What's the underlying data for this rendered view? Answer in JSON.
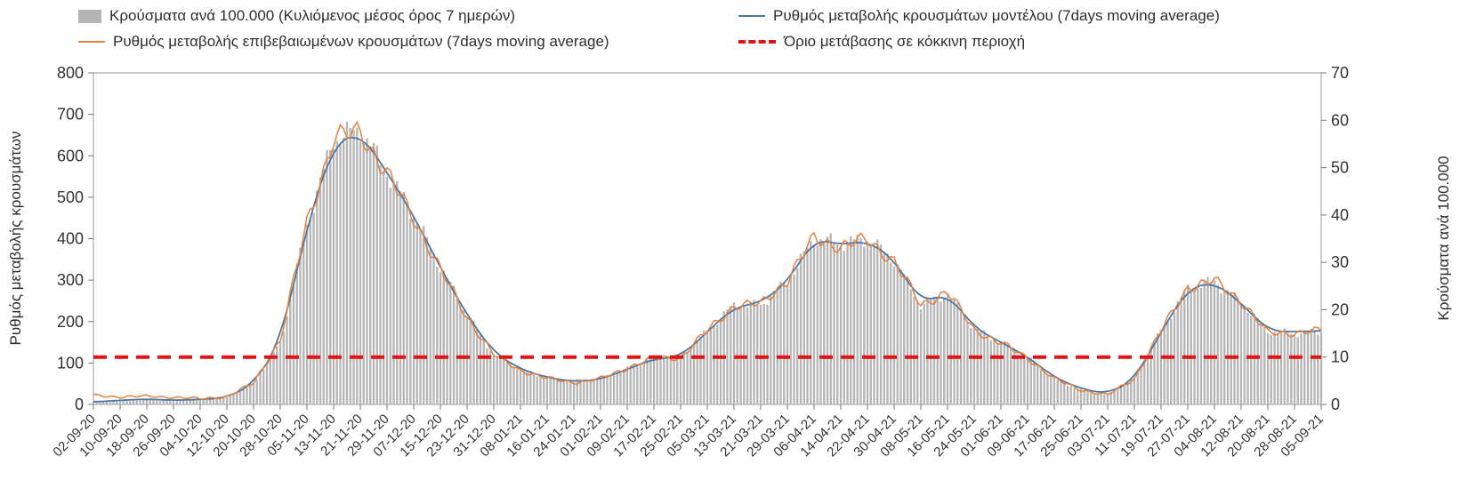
{
  "chart_data": {
    "type": "bar+line",
    "days_per_tick": 8,
    "background": "#ffffff",
    "x_tick_labels": [
      "02-09-20",
      "10-09-20",
      "18-09-20",
      "26-09-20",
      "04-10-20",
      "12-10-20",
      "20-10-20",
      "28-10-20",
      "05-11-20",
      "13-11-20",
      "21-11-20",
      "29-11-20",
      "07-12-20",
      "15-12-20",
      "23-12-20",
      "31-12-20",
      "08-01-21",
      "16-01-21",
      "24-01-21",
      "01-02-21",
      "09-02-21",
      "17-02-21",
      "25-02-21",
      "05-03-21",
      "13-03-21",
      "21-03-21",
      "29-03-21",
      "06-04-21",
      "14-04-21",
      "22-04-21",
      "30-04-21",
      "08-05-21",
      "16-05-21",
      "24-05-21",
      "01-06-21",
      "09-06-21",
      "17-06-21",
      "25-06-21",
      "03-07-21",
      "11-07-21",
      "19-07-21",
      "27-07-21",
      "04-08-21",
      "12-08-21",
      "20-08-21",
      "28-08-21",
      "05-09-21"
    ],
    "left_axis": {
      "label": "Ρυθμός μεταβολής κρουσμάτων",
      "min": 0,
      "max": 800,
      "step": 100,
      "ticks": [
        0,
        100,
        200,
        300,
        400,
        500,
        600,
        700,
        800
      ]
    },
    "right_axis": {
      "label": "Κρούσματα ανά 100.000",
      "min": 0,
      "max": 70,
      "step": 10,
      "ticks": [
        0,
        10,
        20,
        30,
        40,
        50,
        60,
        70
      ]
    },
    "threshold": {
      "label": "Όριο μετάβασης σε κόκκινη περιοχή",
      "axis": "right",
      "value": 10,
      "color": "#e01212",
      "style": "dashed"
    },
    "series": [
      {
        "name": "Κρούσματα ανά 100.000 (Κυλιόμενος μέσος όρος 7 ημερών)",
        "type": "bar",
        "axis": "right",
        "color": "#b5b5b5",
        "values": [
          0.5,
          0.8,
          1.0,
          0.9,
          1.0,
          1.5,
          4.5,
          13,
          38,
          56,
          58,
          49,
          40,
          29,
          19,
          10.5,
          7.5,
          5.5,
          5,
          5.5,
          7.5,
          10,
          10,
          15.5,
          21,
          21,
          26,
          35,
          34,
          35,
          30.5,
          21,
          23.5,
          16,
          13,
          10,
          5.5,
          3,
          2,
          5.5,
          15.5,
          24.5,
          26,
          21.5,
          15.5,
          15,
          15.5
        ]
      },
      {
        "name": "Ρυθμός μεταβολής κρουσμάτων μοντέλου (7days moving average)",
        "type": "line",
        "axis": "left",
        "color": "#4878a8",
        "values": [
          6,
          10,
          13,
          10,
          12,
          16,
          50,
          150,
          430,
          630,
          655,
          560,
          455,
          330,
          215,
          125,
          85,
          65,
          55,
          60,
          85,
          110,
          115,
          175,
          235,
          245,
          295,
          400,
          385,
          395,
          350,
          245,
          268,
          185,
          150,
          115,
          65,
          38,
          25,
          60,
          175,
          280,
          295,
          245,
          178,
          175,
          178
        ]
      },
      {
        "name": "Ρυθμός μεταβολής επιβεβαιωμένων κρουσμάτων (7days moving average)",
        "type": "line",
        "axis": "left",
        "color": "#e8813c",
        "values": [
          22,
          18,
          20,
          17,
          14,
          18,
          52,
          155,
          440,
          640,
          660,
          555,
          450,
          325,
          210,
          120,
          82,
          63,
          53,
          62,
          88,
          112,
          113,
          178,
          238,
          242,
          300,
          402,
          380,
          398,
          345,
          240,
          272,
          180,
          148,
          112,
          62,
          35,
          23,
          62,
          178,
          283,
          298,
          250,
          172,
          173,
          178
        ]
      }
    ]
  }
}
